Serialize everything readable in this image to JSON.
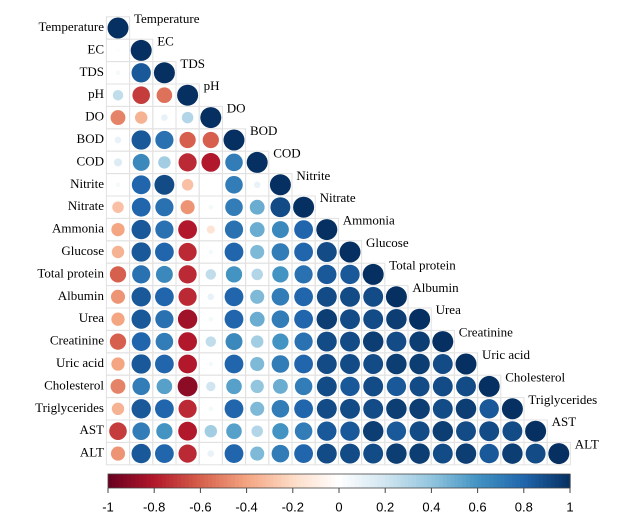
{
  "chart_data": {
    "type": "corrplot",
    "variables": [
      "Temperature",
      "EC",
      "TDS",
      "pH",
      "DO",
      "BOD",
      "COD",
      "Nitrite",
      "Nitrate",
      "Ammonia",
      "Glucose",
      "Total protein",
      "Albumin",
      "Urea",
      "Creatinine",
      "Uric acid",
      "Cholesterol",
      "Triglycerides",
      "AST",
      "ALT"
    ],
    "matrix": [
      [
        1
      ],
      [
        0.02,
        1
      ],
      [
        0.05,
        0.85,
        1
      ],
      [
        0.25,
        -0.7,
        -0.55,
        1
      ],
      [
        -0.5,
        -0.35,
        0.1,
        0.3,
        1
      ],
      [
        0.1,
        0.85,
        0.75,
        -0.6,
        -0.6,
        1
      ],
      [
        0.15,
        0.65,
        0.35,
        -0.75,
        -0.8,
        0.7,
        1
      ],
      [
        0.05,
        0.8,
        0.9,
        -0.3,
        0.0,
        0.7,
        0.1,
        1
      ],
      [
        -0.3,
        0.8,
        0.75,
        -0.45,
        0.05,
        0.7,
        0.5,
        0.9,
        1
      ],
      [
        -0.4,
        0.85,
        0.75,
        -0.8,
        -0.15,
        0.75,
        0.5,
        0.65,
        0.8,
        1
      ],
      [
        -0.35,
        0.85,
        0.8,
        -0.75,
        0.05,
        0.8,
        0.45,
        0.7,
        0.8,
        0.9,
        1
      ],
      [
        -0.6,
        0.75,
        0.65,
        -0.75,
        0.25,
        0.6,
        0.3,
        0.6,
        0.75,
        0.85,
        0.85,
        1
      ],
      [
        -0.45,
        0.85,
        0.8,
        -0.75,
        0.1,
        0.8,
        0.45,
        0.7,
        0.8,
        0.9,
        0.9,
        0.9,
        1
      ],
      [
        -0.4,
        0.85,
        0.75,
        -0.85,
        0.05,
        0.8,
        0.5,
        0.7,
        0.8,
        0.95,
        0.9,
        0.9,
        0.95,
        1
      ],
      [
        -0.6,
        0.8,
        0.7,
        -0.8,
        0.25,
        0.65,
        0.35,
        0.6,
        0.75,
        0.9,
        0.9,
        0.95,
        0.9,
        0.95,
        1
      ],
      [
        -0.4,
        0.85,
        0.8,
        -0.8,
        0.05,
        0.8,
        0.45,
        0.7,
        0.8,
        0.9,
        0.9,
        0.9,
        0.95,
        0.95,
        0.9,
        1
      ],
      [
        -0.5,
        0.7,
        0.55,
        -0.9,
        0.2,
        0.55,
        0.4,
        0.5,
        0.7,
        0.9,
        0.85,
        0.9,
        0.85,
        0.9,
        0.9,
        0.9,
        1
      ],
      [
        -0.35,
        0.85,
        0.8,
        -0.75,
        0.05,
        0.8,
        0.45,
        0.7,
        0.8,
        0.9,
        0.9,
        0.9,
        0.95,
        0.95,
        0.9,
        0.95,
        0.85,
        1
      ],
      [
        -0.7,
        0.7,
        0.6,
        -0.8,
        0.35,
        0.55,
        0.3,
        0.6,
        0.7,
        0.85,
        0.85,
        0.95,
        0.85,
        0.9,
        0.95,
        0.9,
        0.9,
        0.9,
        1
      ],
      [
        -0.45,
        0.85,
        0.8,
        -0.75,
        0.1,
        0.8,
        0.45,
        0.7,
        0.8,
        0.9,
        0.9,
        0.9,
        0.95,
        0.95,
        0.9,
        0.95,
        0.85,
        0.95,
        0.9,
        1
      ]
    ],
    "colormap": [
      "#67001F",
      "#B2182B",
      "#D6604D",
      "#F4A582",
      "#FDDBC7",
      "#FFFFFF",
      "#D1E5F0",
      "#92C5DE",
      "#4393C3",
      "#2166AC",
      "#053061"
    ],
    "colorlim": [
      -1,
      1
    ],
    "colorticks": [
      -1,
      -0.8,
      -0.6,
      -0.4,
      -0.2,
      0,
      0.2,
      0.4,
      0.6,
      0.8,
      1
    ]
  }
}
